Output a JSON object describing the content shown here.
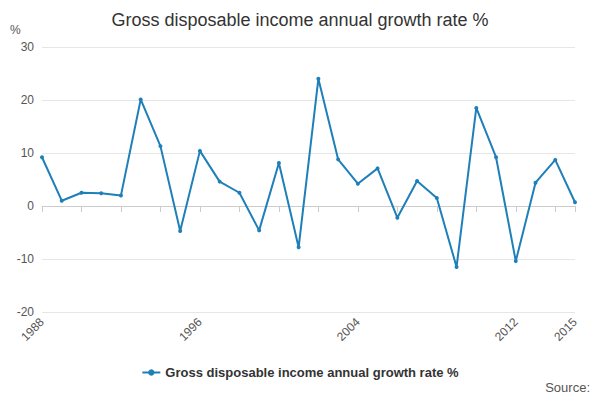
{
  "chart_data": {
    "type": "line",
    "title": "Gross disposable income annual growth rate %",
    "ylabel": "%",
    "annotations": [
      "Source:"
    ],
    "categories": [
      "1988",
      null,
      null,
      null,
      null,
      null,
      null,
      null,
      "1996",
      null,
      null,
      null,
      null,
      null,
      null,
      null,
      "2004",
      null,
      null,
      null,
      null,
      null,
      null,
      null,
      "2012",
      null,
      null,
      "2015"
    ],
    "series": [
      {
        "name": "Gross disposable income annual growth rate %",
        "color": "#1f7fb8",
        "values": [
          9.2,
          1.0,
          2.5,
          2.4,
          2.0,
          20.1,
          11.3,
          -4.7,
          10.4,
          4.6,
          2.5,
          -4.6,
          8.1,
          -7.8,
          24.0,
          8.8,
          4.2,
          7.1,
          -2.2,
          4.7,
          1.5,
          -11.5,
          18.5,
          9.2,
          -10.4,
          4.4,
          8.7,
          0.7
        ],
        "marker": "circle",
        "line_style": "solid"
      }
    ],
    "ylim": [
      -20,
      30
    ],
    "yticks": [
      -20,
      -10,
      0,
      10,
      20,
      30
    ],
    "grid": true,
    "legend": "bottom"
  }
}
